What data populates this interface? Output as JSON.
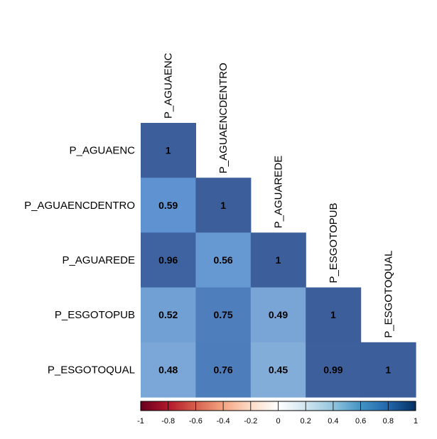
{
  "chart_data": {
    "type": "heatmap",
    "title": "",
    "variables": [
      "P_AGUAENC",
      "P_AGUAENCDENTRO",
      "P_AGUAREDE",
      "P_ESGOTOPUB",
      "P_ESGOTOQUAL"
    ],
    "matrix": [
      [
        1,
        null,
        null,
        null,
        null
      ],
      [
        0.59,
        1,
        null,
        null,
        null
      ],
      [
        0.96,
        0.56,
        1,
        null,
        null
      ],
      [
        0.52,
        0.75,
        0.49,
        1,
        null
      ],
      [
        0.48,
        0.76,
        0.45,
        0.99,
        1
      ]
    ],
    "value_labels": [
      [
        "1",
        "",
        "",
        "",
        ""
      ],
      [
        "0.59",
        "1",
        "",
        "",
        ""
      ],
      [
        "0.96",
        "0.56",
        "1",
        "",
        ""
      ],
      [
        "0.52",
        "0.75",
        "0.49",
        "1",
        ""
      ],
      [
        "0.48",
        "0.76",
        "0.45",
        "0.99",
        "1"
      ]
    ],
    "colorbar": {
      "range": [
        -1,
        1
      ],
      "ticks": [
        "-1",
        "-0.8",
        "-0.6",
        "-0.4",
        "-0.2",
        "0",
        "0.2",
        "0.4",
        "0.6",
        "0.8",
        "1"
      ],
      "colors": [
        "#67001F",
        "#B2182B",
        "#D6604D",
        "#F4A582",
        "#FDDBC7",
        "#FFFFFF",
        "#D1E5F0",
        "#92C5DE",
        "#4393C3",
        "#2166AC",
        "#053061"
      ],
      "placement": "bottom"
    },
    "grid": false
  }
}
